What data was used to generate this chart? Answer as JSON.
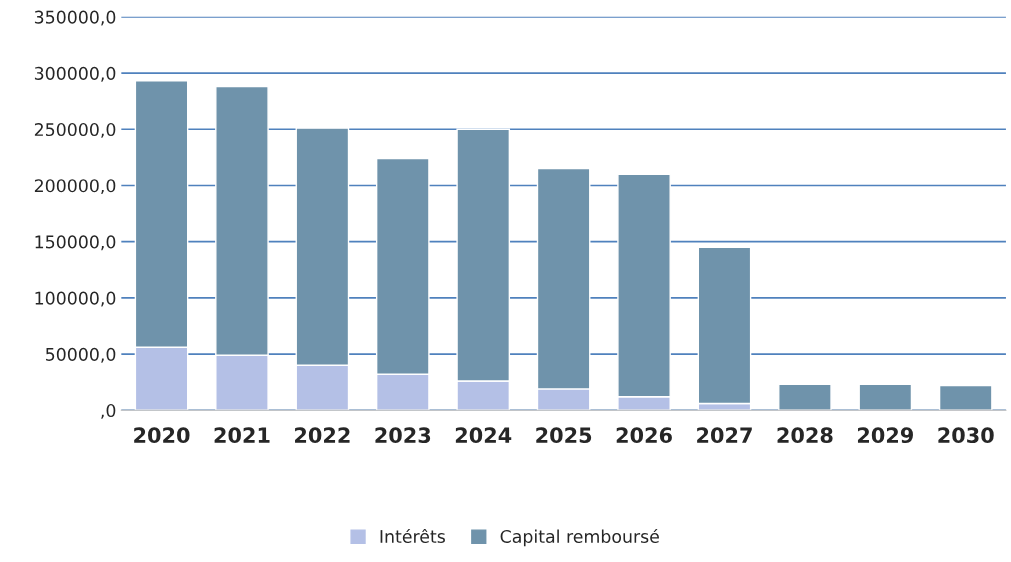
{
  "chart_data": {
    "type": "bar",
    "stacked": true,
    "categories": [
      "2020",
      "2021",
      "2022",
      "2023",
      "2024",
      "2025",
      "2026",
      "2027",
      "2028",
      "2029",
      "2030"
    ],
    "series": [
      {
        "name": "Intérêts",
        "color": "#b4c0e6",
        "values": [
          56000,
          49000,
          40000,
          32000,
          26000,
          19000,
          12000,
          6000,
          null,
          null,
          null
        ]
      },
      {
        "name": "Capital remboursé",
        "color": "#6f93ab",
        "values": [
          237000,
          239000,
          211000,
          192000,
          224000,
          196000,
          198000,
          139000,
          23000,
          23000,
          22000
        ]
      }
    ],
    "ylim": [
      0,
      350000
    ],
    "yticks": [
      {
        "value": 0,
        "label": ",0"
      },
      {
        "value": 50000,
        "label": "50000,0"
      },
      {
        "value": 100000,
        "label": "100000,0"
      },
      {
        "value": 150000,
        "label": "150000,0"
      },
      {
        "value": 200000,
        "label": "200000,0"
      },
      {
        "value": 250000,
        "label": "250000,0"
      },
      {
        "value": 300000,
        "label": "300000,0"
      },
      {
        "value": 350000,
        "label": "350000,0"
      }
    ],
    "grid": "y",
    "legend": "bottom"
  }
}
